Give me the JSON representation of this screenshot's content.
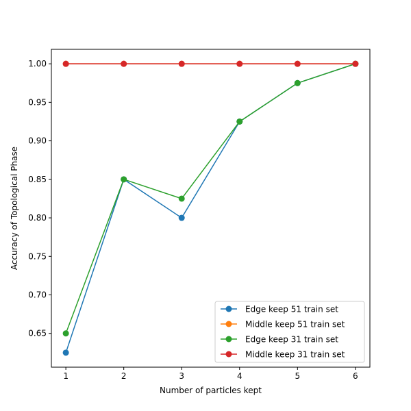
{
  "chart_data": {
    "type": "line",
    "title": "",
    "xlabel": "Number of particles kept",
    "ylabel": "Accuracy of Topological Phase",
    "x": [
      1,
      2,
      3,
      4,
      5,
      6
    ],
    "xticks": [
      "1",
      "2",
      "3",
      "4",
      "5",
      "6"
    ],
    "yticks": [
      "0.65",
      "0.70",
      "0.75",
      "0.80",
      "0.85",
      "0.90",
      "0.95",
      "1.00"
    ],
    "xlim": [
      0.75,
      6.25
    ],
    "ylim": [
      0.6062,
      1.0188
    ],
    "grid": false,
    "legend_position": "lower-right",
    "series": [
      {
        "name": "Edge keep 51 train set",
        "color": "#1f77b4",
        "values": [
          0.625,
          0.85,
          0.8,
          0.925,
          0.975,
          1.0
        ]
      },
      {
        "name": "Middle keep 51 train set",
        "color": "#ff7f0e",
        "values": [
          1.0,
          1.0,
          1.0,
          1.0,
          1.0,
          1.0
        ]
      },
      {
        "name": "Edge keep 31 train set",
        "color": "#2ca02c",
        "values": [
          0.65,
          0.85,
          0.825,
          0.925,
          0.975,
          1.0
        ]
      },
      {
        "name": "Middle keep 31 train set",
        "color": "#d62728",
        "values": [
          1.0,
          1.0,
          1.0,
          1.0,
          1.0,
          1.0
        ]
      }
    ]
  }
}
